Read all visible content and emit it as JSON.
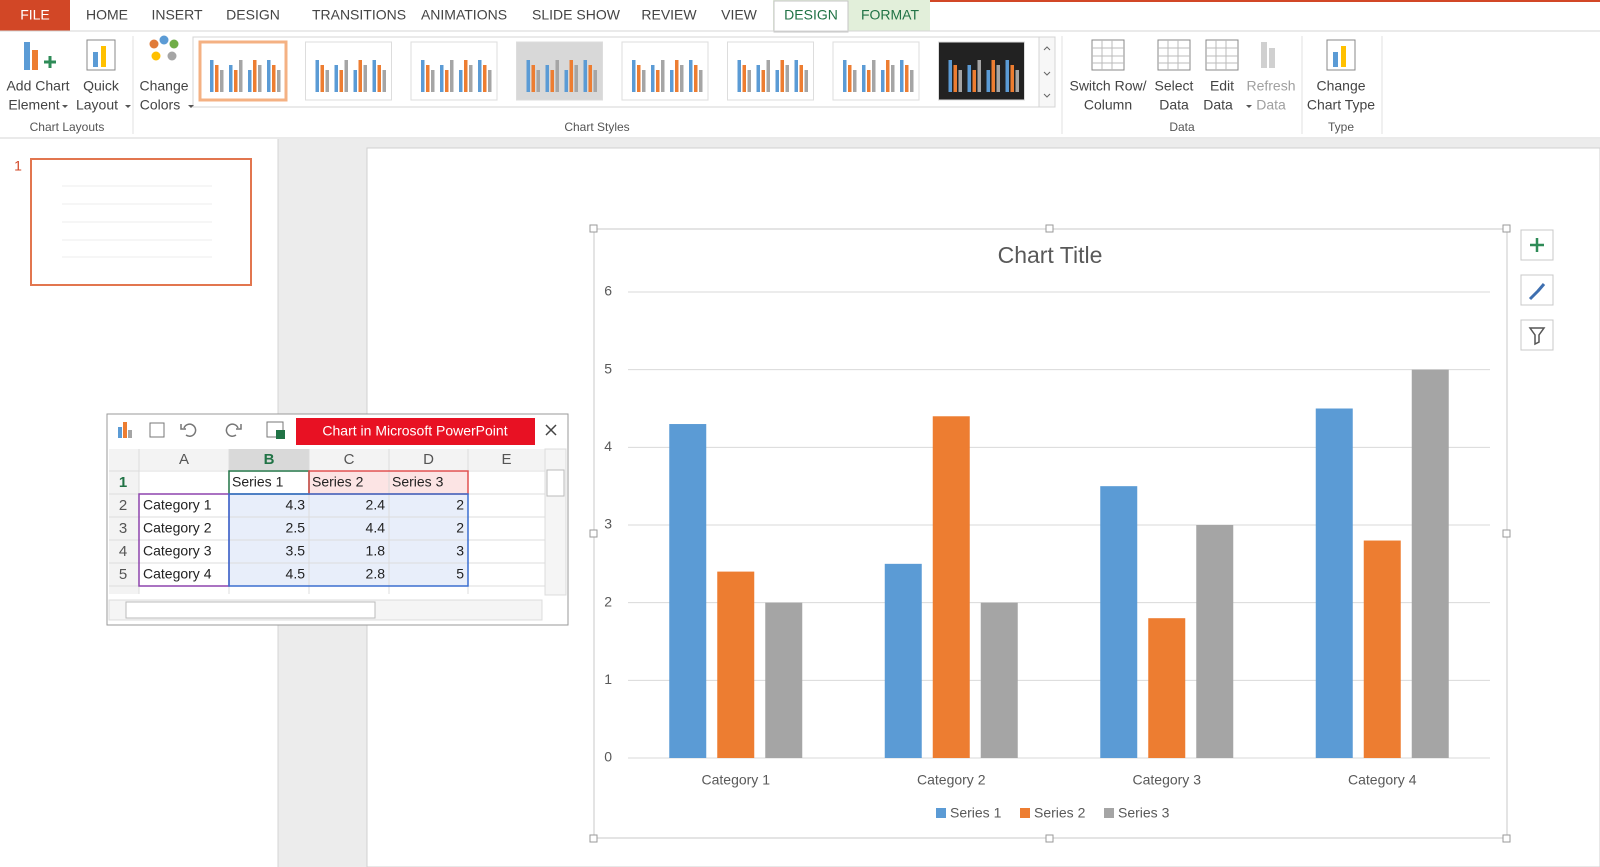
{
  "ribbon": {
    "tabs": [
      "FILE",
      "HOME",
      "INSERT",
      "DESIGN",
      "TRANSITIONS",
      "ANIMATIONS",
      "SLIDE SHOW",
      "REVIEW",
      "VIEW",
      "DESIGN",
      "FORMAT"
    ],
    "groups": [
      {
        "label": "Chart Layouts",
        "buttons": [
          [
            "Add Chart",
            "Element"
          ],
          [
            "Quick",
            "Layout"
          ]
        ]
      },
      {
        "label": "Chart Styles",
        "buttons": [
          [
            "Change",
            "Colors"
          ]
        ]
      },
      {
        "label": "Data",
        "buttons": [
          [
            "Switch Row/",
            "Column"
          ],
          [
            "Select",
            "Data"
          ],
          [
            "Edit",
            "Data"
          ],
          [
            "Refresh",
            "Data"
          ]
        ]
      },
      {
        "label": "Type",
        "buttons": [
          [
            "Change",
            "Chart Type"
          ]
        ]
      }
    ]
  },
  "slide_number": 1,
  "spreadsheet": {
    "title": "Chart in Microsoft PowerPoint",
    "columns": [
      "A",
      "B",
      "C",
      "D",
      "E"
    ],
    "row_numbers": [
      1,
      2,
      3,
      4,
      5
    ],
    "header": [
      "Series 1",
      "Series 2",
      "Series 3"
    ],
    "rows": [
      {
        "label": "Category 1",
        "values": [
          4.3,
          2.4,
          2
        ]
      },
      {
        "label": "Category 2",
        "values": [
          2.5,
          4.4,
          2
        ]
      },
      {
        "label": "Category 3",
        "values": [
          3.5,
          1.8,
          3
        ]
      },
      {
        "label": "Category 4",
        "values": [
          4.5,
          2.8,
          5
        ]
      }
    ]
  },
  "chart_data": {
    "type": "bar",
    "title": "Chart Title",
    "categories": [
      "Category 1",
      "Category 2",
      "Category 3",
      "Category 4"
    ],
    "series": [
      {
        "name": "Series 1",
        "color": "#5b9bd5",
        "values": [
          4.3,
          2.5,
          3.5,
          4.5
        ]
      },
      {
        "name": "Series 2",
        "color": "#ed7d31",
        "values": [
          2.4,
          4.4,
          1.8,
          2.8
        ]
      },
      {
        "name": "Series 3",
        "color": "#a5a5a5",
        "values": [
          2,
          2,
          3,
          5
        ]
      }
    ],
    "ylim": [
      0,
      6
    ],
    "yticks": [
      0,
      1,
      2,
      3,
      4,
      5,
      6
    ],
    "grid": true,
    "legend": "bottom"
  }
}
